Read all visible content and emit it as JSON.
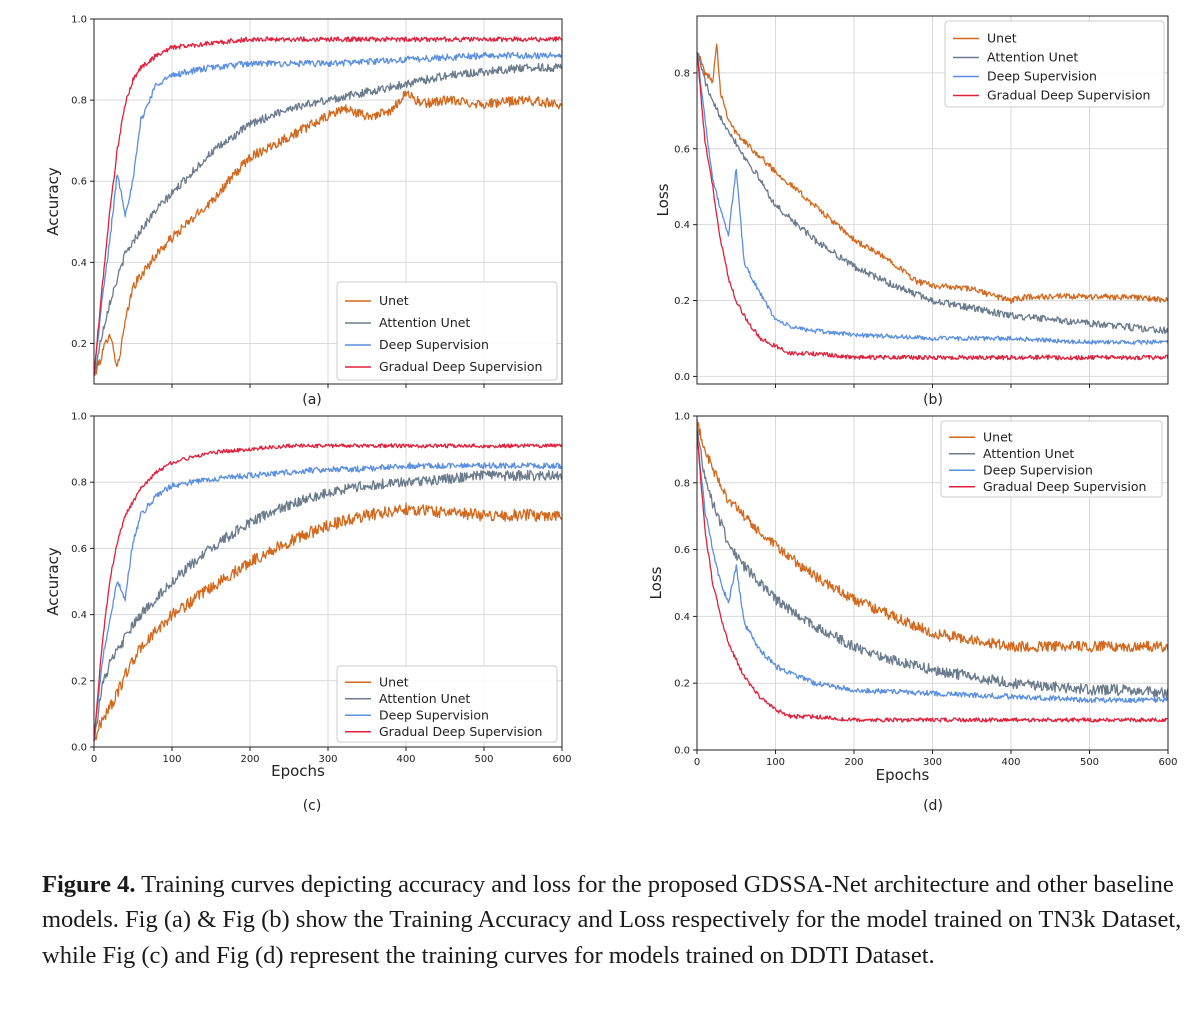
{
  "chart_data": [
    {
      "id": "a",
      "type": "line",
      "panel_label": "(a)",
      "xlabel": "",
      "ylabel": "Accuracy",
      "xlim": [
        0,
        600
      ],
      "ylim": [
        0.1,
        1.0
      ],
      "yticks": [
        "0.2",
        "0.4",
        "0.6",
        "0.8",
        "1.0"
      ],
      "yticks_values": [
        0.2,
        0.4,
        0.6,
        0.8,
        1.0
      ],
      "xticks": [],
      "xticks_values": [
        100,
        200,
        300,
        400,
        500
      ],
      "grid": true,
      "legend_position": "lower-right",
      "series": [
        {
          "name": "Unet",
          "color": "#d2691e",
          "noise": 0.012,
          "x": [
            0,
            10,
            20,
            30,
            40,
            50,
            80,
            100,
            150,
            200,
            250,
            300,
            320,
            350,
            380,
            400,
            420,
            450,
            500,
            550,
            600
          ],
          "y": [
            0.12,
            0.17,
            0.23,
            0.14,
            0.25,
            0.34,
            0.42,
            0.46,
            0.55,
            0.66,
            0.71,
            0.76,
            0.78,
            0.76,
            0.77,
            0.82,
            0.79,
            0.8,
            0.79,
            0.8,
            0.79
          ]
        },
        {
          "name": "Attention Unet",
          "color": "#6b7b8c",
          "noise": 0.01,
          "x": [
            0,
            10,
            20,
            40,
            60,
            80,
            100,
            150,
            200,
            250,
            300,
            350,
            400,
            450,
            500,
            550,
            600
          ],
          "y": [
            0.12,
            0.22,
            0.3,
            0.42,
            0.48,
            0.53,
            0.57,
            0.67,
            0.74,
            0.78,
            0.8,
            0.82,
            0.84,
            0.86,
            0.87,
            0.88,
            0.88
          ]
        },
        {
          "name": "Deep Supervision",
          "color": "#5b8fe0",
          "noise": 0.008,
          "x": [
            0,
            10,
            20,
            30,
            40,
            50,
            60,
            80,
            100,
            120,
            150,
            200,
            250,
            300,
            400,
            500,
            600
          ],
          "y": [
            0.12,
            0.3,
            0.45,
            0.62,
            0.52,
            0.6,
            0.75,
            0.84,
            0.86,
            0.87,
            0.88,
            0.89,
            0.89,
            0.89,
            0.9,
            0.91,
            0.91
          ]
        },
        {
          "name": "Gradual Deep Supervision",
          "color": "#e0203c",
          "noise": 0.006,
          "x": [
            0,
            10,
            20,
            30,
            40,
            50,
            60,
            80,
            100,
            150,
            200,
            250,
            300,
            400,
            500,
            600
          ],
          "y": [
            0.12,
            0.33,
            0.52,
            0.68,
            0.79,
            0.85,
            0.88,
            0.91,
            0.93,
            0.94,
            0.95,
            0.95,
            0.95,
            0.95,
            0.95,
            0.95
          ]
        }
      ]
    },
    {
      "id": "b",
      "type": "line",
      "panel_label": "(b)",
      "xlabel": "",
      "ylabel": "Loss",
      "xlim": [
        0,
        600
      ],
      "ylim": [
        -0.02,
        0.95
      ],
      "yticks": [
        "0.0",
        "0.2",
        "0.4",
        "0.6",
        "0.8"
      ],
      "yticks_values": [
        0.0,
        0.2,
        0.4,
        0.6,
        0.8
      ],
      "xticks": [],
      "xticks_values": [
        100,
        200,
        300,
        400,
        500
      ],
      "grid": true,
      "legend_position": "top-right",
      "series": [
        {
          "name": "Unet",
          "color": "#d2691e",
          "noise": 0.008,
          "x": [
            0,
            10,
            20,
            25,
            30,
            40,
            50,
            70,
            100,
            150,
            200,
            250,
            280,
            300,
            350,
            400,
            420,
            450,
            500,
            550,
            600
          ],
          "y": [
            0.86,
            0.8,
            0.78,
            0.88,
            0.75,
            0.68,
            0.64,
            0.6,
            0.54,
            0.45,
            0.36,
            0.3,
            0.25,
            0.24,
            0.23,
            0.2,
            0.21,
            0.21,
            0.21,
            0.21,
            0.2
          ]
        },
        {
          "name": "Attention Unet",
          "color": "#6b7b8c",
          "noise": 0.009,
          "x": [
            0,
            10,
            20,
            40,
            60,
            80,
            100,
            150,
            200,
            250,
            300,
            350,
            400,
            450,
            500,
            550,
            600
          ],
          "y": [
            0.86,
            0.78,
            0.72,
            0.65,
            0.58,
            0.52,
            0.45,
            0.36,
            0.29,
            0.24,
            0.2,
            0.18,
            0.16,
            0.15,
            0.14,
            0.13,
            0.12
          ]
        },
        {
          "name": "Deep Supervision",
          "color": "#5b8fe0",
          "noise": 0.006,
          "x": [
            0,
            10,
            20,
            30,
            40,
            50,
            60,
            80,
            100,
            120,
            150,
            200,
            300,
            400,
            500,
            600
          ],
          "y": [
            0.86,
            0.68,
            0.52,
            0.44,
            0.37,
            0.55,
            0.3,
            0.22,
            0.15,
            0.13,
            0.12,
            0.11,
            0.1,
            0.1,
            0.09,
            0.09
          ]
        },
        {
          "name": "Gradual Deep Supervision",
          "color": "#e0203c",
          "noise": 0.006,
          "x": [
            0,
            10,
            20,
            30,
            40,
            50,
            60,
            80,
            100,
            120,
            150,
            200,
            300,
            400,
            500,
            600
          ],
          "y": [
            0.86,
            0.62,
            0.5,
            0.36,
            0.26,
            0.2,
            0.16,
            0.1,
            0.08,
            0.06,
            0.06,
            0.05,
            0.05,
            0.05,
            0.05,
            0.05
          ]
        }
      ]
    },
    {
      "id": "c",
      "type": "line",
      "panel_label": "(c)",
      "xlabel": "Epochs",
      "ylabel": "Accuracy",
      "xlim": [
        0,
        600
      ],
      "ylim": [
        0.0,
        1.0
      ],
      "yticks": [
        "0.0",
        "0.2",
        "0.4",
        "0.6",
        "0.8",
        "1.0"
      ],
      "yticks_values": [
        0.0,
        0.2,
        0.4,
        0.6,
        0.8,
        1.0
      ],
      "xticks": [
        "0",
        "100",
        "200",
        "300",
        "400",
        "500",
        "600"
      ],
      "xticks_values": [
        0,
        100,
        200,
        300,
        400,
        500,
        600
      ],
      "grid": true,
      "legend_position": "lower-right",
      "series": [
        {
          "name": "Unet",
          "color": "#d2691e",
          "noise": 0.018,
          "x": [
            0,
            10,
            20,
            30,
            40,
            60,
            80,
            100,
            150,
            200,
            250,
            300,
            350,
            400,
            450,
            500,
            550,
            600
          ],
          "y": [
            0.02,
            0.08,
            0.12,
            0.16,
            0.22,
            0.3,
            0.35,
            0.4,
            0.48,
            0.56,
            0.62,
            0.67,
            0.7,
            0.72,
            0.71,
            0.7,
            0.7,
            0.7
          ]
        },
        {
          "name": "Attention Unet",
          "color": "#6b7b8c",
          "noise": 0.016,
          "x": [
            0,
            10,
            20,
            40,
            60,
            80,
            100,
            150,
            200,
            250,
            300,
            350,
            400,
            450,
            500,
            550,
            600
          ],
          "y": [
            0.02,
            0.18,
            0.25,
            0.33,
            0.4,
            0.45,
            0.5,
            0.6,
            0.68,
            0.73,
            0.77,
            0.79,
            0.8,
            0.81,
            0.82,
            0.82,
            0.82
          ]
        },
        {
          "name": "Deep Supervision",
          "color": "#5b8fe0",
          "noise": 0.009,
          "x": [
            0,
            10,
            20,
            30,
            40,
            50,
            60,
            80,
            100,
            150,
            200,
            250,
            300,
            350,
            400,
            500,
            600
          ],
          "y": [
            0.02,
            0.25,
            0.38,
            0.5,
            0.45,
            0.62,
            0.7,
            0.76,
            0.79,
            0.81,
            0.82,
            0.83,
            0.84,
            0.84,
            0.85,
            0.85,
            0.85
          ]
        },
        {
          "name": "Gradual Deep Supervision",
          "color": "#e0203c",
          "noise": 0.006,
          "x": [
            0,
            10,
            20,
            30,
            40,
            60,
            80,
            100,
            150,
            200,
            250,
            300,
            400,
            500,
            600
          ],
          "y": [
            0.02,
            0.3,
            0.5,
            0.62,
            0.7,
            0.78,
            0.83,
            0.86,
            0.89,
            0.9,
            0.91,
            0.91,
            0.91,
            0.91,
            0.91
          ]
        }
      ]
    },
    {
      "id": "d",
      "type": "line",
      "panel_label": "(d)",
      "xlabel": "Epochs",
      "ylabel": "Loss",
      "xlim": [
        0,
        600
      ],
      "ylim": [
        0.0,
        1.0
      ],
      "yticks": [
        "0.0",
        "0.2",
        "0.4",
        "0.6",
        "0.8",
        "1.0"
      ],
      "yticks_values": [
        0.0,
        0.2,
        0.4,
        0.6,
        0.8,
        1.0
      ],
      "xticks": [
        "0",
        "100",
        "200",
        "300",
        "400",
        "500",
        "600"
      ],
      "xticks_values": [
        0,
        100,
        200,
        300,
        400,
        500,
        600
      ],
      "grid": true,
      "legend_position": "top-right",
      "series": [
        {
          "name": "Unet",
          "color": "#d2691e",
          "noise": 0.016,
          "x": [
            0,
            10,
            20,
            40,
            60,
            80,
            100,
            150,
            200,
            250,
            300,
            350,
            400,
            450,
            500,
            550,
            600
          ],
          "y": [
            0.98,
            0.9,
            0.84,
            0.75,
            0.7,
            0.65,
            0.61,
            0.52,
            0.45,
            0.4,
            0.35,
            0.33,
            0.31,
            0.31,
            0.31,
            0.31,
            0.31
          ]
        },
        {
          "name": "Attention Unet",
          "color": "#6b7b8c",
          "noise": 0.016,
          "x": [
            0,
            10,
            20,
            40,
            60,
            80,
            100,
            150,
            200,
            250,
            300,
            350,
            400,
            450,
            500,
            550,
            600
          ],
          "y": [
            0.96,
            0.82,
            0.74,
            0.62,
            0.55,
            0.5,
            0.45,
            0.37,
            0.31,
            0.27,
            0.24,
            0.22,
            0.2,
            0.19,
            0.18,
            0.18,
            0.17
          ]
        },
        {
          "name": "Deep Supervision",
          "color": "#5b8fe0",
          "noise": 0.008,
          "x": [
            0,
            10,
            20,
            30,
            40,
            50,
            60,
            80,
            100,
            150,
            200,
            300,
            400,
            500,
            600
          ],
          "y": [
            0.94,
            0.72,
            0.6,
            0.5,
            0.44,
            0.55,
            0.38,
            0.3,
            0.25,
            0.2,
            0.18,
            0.17,
            0.16,
            0.15,
            0.15
          ]
        },
        {
          "name": "Gradual Deep Supervision",
          "color": "#e0203c",
          "noise": 0.006,
          "x": [
            0,
            10,
            20,
            30,
            40,
            60,
            80,
            100,
            120,
            150,
            200,
            300,
            400,
            500,
            600
          ],
          "y": [
            0.95,
            0.66,
            0.5,
            0.4,
            0.32,
            0.22,
            0.16,
            0.12,
            0.1,
            0.1,
            0.09,
            0.09,
            0.09,
            0.09,
            0.09
          ]
        }
      ]
    }
  ],
  "caption": {
    "label": "Figure 4.",
    "text": " Training curves depicting accuracy and loss for the proposed GDSSA-Net architecture and other baseline models. Fig (a) & Fig (b) show the Training Accuracy and Loss respectively for the model trained on TN3k Dataset, while Fig (c) and Fig (d) represent the training curves for models trained on DDTI Dataset."
  }
}
